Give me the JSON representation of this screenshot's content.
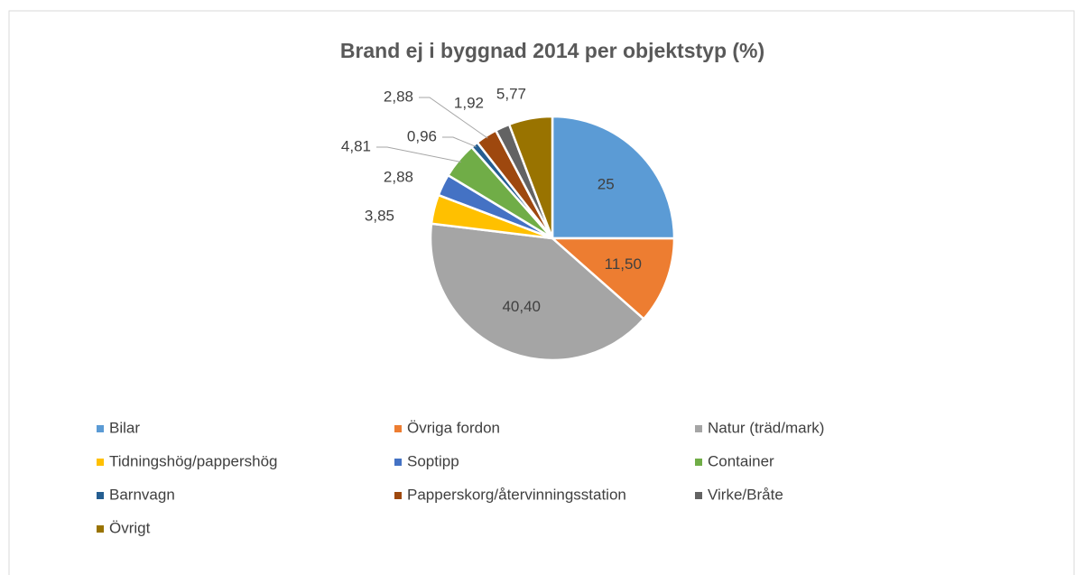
{
  "chart_data": {
    "type": "pie",
    "title": "Brand ej i byggnad 2014 per objektstyp (%)",
    "categories": [
      "Bilar",
      "Övriga fordon",
      "Natur (träd/mark)",
      "Tidningshög/pappershög",
      "Soptipp",
      "Container",
      "Barnvagn",
      "Papperskorg/återvinningsstation",
      "Virke/Bråte",
      "Övrigt"
    ],
    "values": [
      25,
      11.5,
      40.4,
      3.85,
      2.88,
      4.81,
      0.96,
      2.88,
      1.92,
      5.77
    ],
    "value_labels": [
      "25",
      "11,50",
      "40,40",
      "3,85",
      "2,88",
      "4,81",
      "0,96",
      "2,88",
      "1,92",
      "5,77"
    ],
    "colors": [
      "#5b9bd5",
      "#ed7d31",
      "#a5a5a5",
      "#ffc000",
      "#4472c4",
      "#70ad47",
      "#255e91",
      "#9e480e",
      "#636363",
      "#997300"
    ],
    "legend": "bottom"
  }
}
